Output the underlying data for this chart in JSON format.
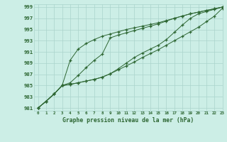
{
  "title": "Graphe pression niveau de la mer (hPa)",
  "xlim": [
    -0.5,
    23
  ],
  "ylim": [
    980.5,
    999.5
  ],
  "yticks": [
    981,
    983,
    985,
    987,
    989,
    991,
    993,
    995,
    997,
    999
  ],
  "xticks": [
    0,
    1,
    2,
    3,
    4,
    5,
    6,
    7,
    8,
    9,
    10,
    11,
    12,
    13,
    14,
    15,
    16,
    17,
    18,
    19,
    20,
    21,
    22,
    23
  ],
  "bg_color": "#cceee6",
  "grid_color": "#aad4cc",
  "line_color": "#2d6632",
  "line1_x": [
    0,
    1,
    2,
    3,
    4,
    5,
    6,
    7,
    8,
    9,
    10,
    11,
    12,
    13,
    14,
    15,
    16,
    17,
    18,
    19,
    20,
    21,
    22,
    23
  ],
  "line1_y": [
    981,
    982.2,
    983.5,
    985.0,
    985.2,
    985.5,
    985.8,
    986.1,
    986.5,
    987.1,
    987.8,
    988.5,
    989.2,
    990.0,
    990.7,
    991.4,
    992.2,
    993.0,
    993.8,
    994.6,
    995.4,
    996.4,
    997.4,
    998.8
  ],
  "line2_x": [
    0,
    1,
    2,
    3,
    4,
    5,
    6,
    7,
    8,
    9,
    10,
    11,
    12,
    13,
    14,
    15,
    16,
    17,
    18,
    19,
    20,
    21,
    22,
    23
  ],
  "line2_y": [
    981,
    982.2,
    983.5,
    985.0,
    989.5,
    991.5,
    992.5,
    993.2,
    993.8,
    994.2,
    994.6,
    995.0,
    995.3,
    995.6,
    995.9,
    996.2,
    996.6,
    997.0,
    997.4,
    997.8,
    998.1,
    998.4,
    998.7,
    999.0
  ],
  "line3_x": [
    0,
    1,
    2,
    3,
    4,
    5,
    6,
    7,
    8,
    9,
    10,
    11,
    12,
    13,
    14,
    15,
    16,
    17,
    18,
    19,
    20,
    21,
    22,
    23
  ],
  "line3_y": [
    981,
    982.2,
    983.5,
    985.0,
    985.5,
    986.8,
    988.2,
    989.5,
    990.6,
    993.5,
    994.0,
    994.4,
    994.8,
    995.2,
    995.6,
    996.0,
    996.5,
    997.0,
    997.4,
    997.8,
    998.1,
    998.4,
    998.7,
    999.0
  ],
  "line4_x": [
    0,
    1,
    2,
    3,
    4,
    5,
    6,
    7,
    8,
    9,
    10,
    11,
    12,
    13,
    14,
    15,
    16,
    17,
    18,
    19,
    20,
    21,
    22,
    23
  ],
  "line4_y": [
    981,
    982.2,
    983.5,
    985.0,
    985.2,
    985.5,
    985.8,
    986.1,
    986.5,
    987.1,
    988.0,
    989.0,
    990.0,
    990.8,
    991.5,
    992.2,
    993.2,
    994.5,
    995.8,
    997.0,
    997.8,
    998.2,
    998.6,
    999.0
  ]
}
